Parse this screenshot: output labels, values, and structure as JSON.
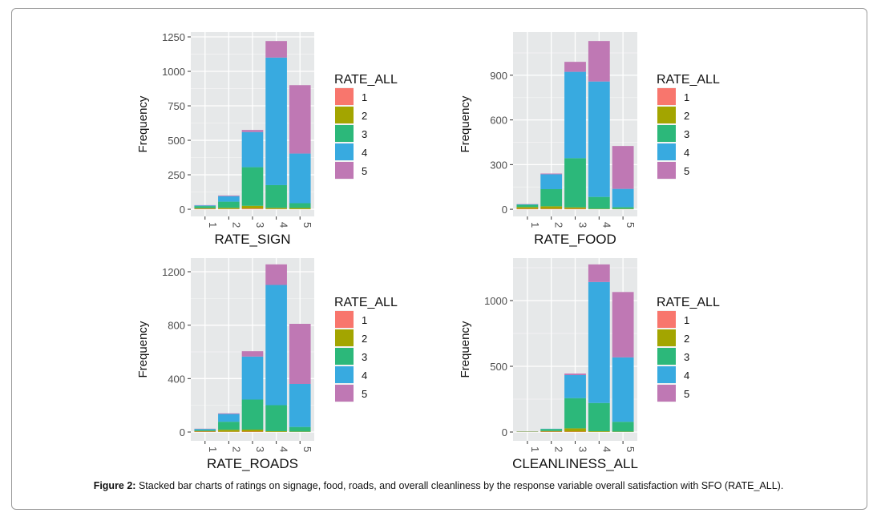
{
  "caption": {
    "label": "Figure 2:",
    "text": " Stacked bar charts of ratings on signage, food, roads, and overall cleanliness by the response variable overall satisfaction with SFO (RATE_ALL)."
  },
  "legend_colors": {
    "1": "#f8766d",
    "2": "#a3a500",
    "3": "#2cb87a",
    "4": "#38aae0",
    "5": "#bf78b4"
  },
  "panel_bg": "#e6e8e9",
  "chart_data": [
    {
      "type": "bar",
      "stacked": true,
      "xlabel": "RATE_SIGN",
      "ylabel": "Frequency",
      "categories": [
        "1",
        "2",
        "3",
        "4",
        "5"
      ],
      "yticks": [
        0,
        250,
        500,
        750,
        1000,
        1250
      ],
      "ylim": [
        -52,
        1285
      ],
      "legend_title": "RATE_ALL",
      "legend_position": "right",
      "series": [
        {
          "name": "1",
          "values": [
            3,
            2,
            5,
            2,
            1
          ]
        },
        {
          "name": "2",
          "values": [
            5,
            8,
            20,
            8,
            8
          ]
        },
        {
          "name": "3",
          "values": [
            15,
            45,
            280,
            165,
            35
          ]
        },
        {
          "name": "4",
          "values": [
            5,
            40,
            255,
            925,
            360
          ]
        },
        {
          "name": "5",
          "values": [
            2,
            5,
            15,
            120,
            496
          ]
        }
      ]
    },
    {
      "type": "bar",
      "stacked": true,
      "xlabel": "RATE_FOOD",
      "ylabel": "Frequency",
      "categories": [
        "1",
        "2",
        "3",
        "4",
        "5"
      ],
      "yticks": [
        0,
        300,
        600,
        900
      ],
      "ylim": [
        -48,
        1190
      ],
      "legend_title": "RATE_ALL",
      "legend_position": "right",
      "series": [
        {
          "name": "1",
          "values": [
            3,
            3,
            3,
            1,
            1
          ]
        },
        {
          "name": "2",
          "values": [
            12,
            17,
            10,
            2,
            2
          ]
        },
        {
          "name": "3",
          "values": [
            15,
            115,
            330,
            80,
            12
          ]
        },
        {
          "name": "4",
          "values": [
            3,
            100,
            580,
            775,
            122
          ]
        },
        {
          "name": "5",
          "values": [
            2,
            5,
            67,
            272,
            288
          ]
        }
      ]
    },
    {
      "type": "bar",
      "stacked": true,
      "xlabel": "RATE_ROADS",
      "ylabel": "Frequency",
      "categories": [
        "1",
        "2",
        "3",
        "4",
        "5"
      ],
      "yticks": [
        0,
        400,
        800,
        1200
      ],
      "ylim": [
        -66,
        1302
      ],
      "legend_title": "RATE_ALL",
      "legend_position": "right",
      "series": [
        {
          "name": "1",
          "values": [
            3,
            2,
            3,
            1,
            1
          ]
        },
        {
          "name": "2",
          "values": [
            5,
            15,
            15,
            5,
            2
          ]
        },
        {
          "name": "3",
          "values": [
            7,
            60,
            225,
            195,
            35
          ]
        },
        {
          "name": "4",
          "values": [
            8,
            58,
            322,
            900,
            322
          ]
        },
        {
          "name": "5",
          "values": [
            2,
            5,
            40,
            154,
            450
          ]
        }
      ]
    },
    {
      "type": "bar",
      "stacked": true,
      "xlabel": "CLEANLINESS_ALL",
      "ylabel": "Frequency",
      "categories": [
        "1",
        "2",
        "3",
        "4",
        "5"
      ],
      "yticks": [
        0,
        500,
        1000
      ],
      "ylim": [
        -67,
        1323
      ],
      "legend_title": "RATE_ALL",
      "legend_position": "right",
      "series": [
        {
          "name": "1",
          "values": [
            2,
            3,
            3,
            1,
            1
          ]
        },
        {
          "name": "2",
          "values": [
            1,
            5,
            25,
            5,
            2
          ]
        },
        {
          "name": "3",
          "values": [
            2,
            15,
            230,
            215,
            75
          ]
        },
        {
          "name": "4",
          "values": [
            0,
            2,
            175,
            920,
            490
          ]
        },
        {
          "name": "5",
          "values": [
            0,
            0,
            12,
            134,
            497
          ]
        }
      ]
    }
  ]
}
